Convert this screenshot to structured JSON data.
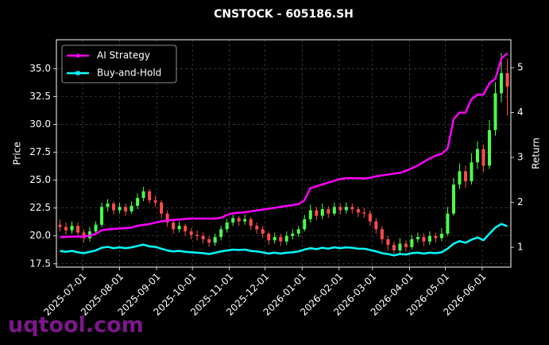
{
  "chart_data": {
    "type": "candlestick",
    "title": "CNSTOCK - 605186.SH",
    "ylabel": "Price",
    "y2label": "Return",
    "watermark": "uqtool.com",
    "x": [
      "2025-06-12",
      "2025-06-17",
      "2025-06-22",
      "2025-06-27",
      "2025-07-02",
      "2025-07-07",
      "2025-07-12",
      "2025-07-17",
      "2025-07-22",
      "2025-07-27",
      "2025-08-01",
      "2025-08-06",
      "2025-08-11",
      "2025-08-16",
      "2025-08-21",
      "2025-08-26",
      "2025-08-31",
      "2025-09-05",
      "2025-09-10",
      "2025-09-15",
      "2025-09-20",
      "2025-09-25",
      "2025-09-30",
      "2025-10-05",
      "2025-10-10",
      "2025-10-15",
      "2025-10-20",
      "2025-10-25",
      "2025-10-30",
      "2025-11-04",
      "2025-11-09",
      "2025-11-14",
      "2025-11-19",
      "2025-11-24",
      "2025-11-29",
      "2025-12-04",
      "2025-12-09",
      "2025-12-14",
      "2025-12-19",
      "2025-12-24",
      "2025-12-29",
      "2026-01-03",
      "2026-01-08",
      "2026-01-13",
      "2026-01-18",
      "2026-01-23",
      "2026-01-28",
      "2026-02-02",
      "2026-02-07",
      "2026-02-12",
      "2026-02-17",
      "2026-02-22",
      "2026-02-27",
      "2026-03-04",
      "2026-03-09",
      "2026-03-14",
      "2026-03-19",
      "2026-03-24",
      "2026-03-29",
      "2026-04-03",
      "2026-04-08",
      "2026-04-13",
      "2026-04-18",
      "2026-04-23",
      "2026-04-28",
      "2026-05-03",
      "2026-05-08",
      "2026-05-13",
      "2026-05-18",
      "2026-05-23",
      "2026-05-28",
      "2026-06-02",
      "2026-06-07",
      "2026-06-12",
      "2026-06-17",
      "2026-06-22"
    ],
    "ohlc": [
      [
        21.0,
        21.5,
        20.4,
        20.8
      ],
      [
        20.8,
        21.2,
        20.1,
        20.5
      ],
      [
        20.5,
        21.3,
        20.2,
        20.9
      ],
      [
        20.9,
        21.2,
        20.0,
        20.3
      ],
      [
        20.3,
        20.6,
        19.4,
        19.8
      ],
      [
        19.8,
        20.8,
        19.5,
        20.4
      ],
      [
        20.4,
        21.3,
        20.1,
        21.0
      ],
      [
        21.0,
        23.0,
        20.8,
        22.6
      ],
      [
        22.6,
        23.3,
        22.2,
        22.9
      ],
      [
        22.9,
        23.1,
        21.9,
        22.3
      ],
      [
        22.3,
        23.0,
        22.0,
        22.6
      ],
      [
        22.6,
        22.9,
        21.8,
        22.2
      ],
      [
        22.2,
        23.1,
        22.0,
        22.7
      ],
      [
        22.7,
        23.8,
        22.4,
        23.4
      ],
      [
        23.4,
        24.4,
        23.1,
        24.0
      ],
      [
        24.0,
        24.2,
        22.9,
        23.2
      ],
      [
        23.2,
        23.6,
        22.6,
        23.0
      ],
      [
        23.0,
        23.2,
        21.6,
        22.0
      ],
      [
        22.0,
        22.3,
        20.8,
        21.2
      ],
      [
        21.2,
        21.5,
        20.2,
        20.6
      ],
      [
        20.6,
        21.3,
        20.3,
        20.9
      ],
      [
        20.9,
        21.1,
        20.0,
        20.4
      ],
      [
        20.4,
        20.7,
        19.7,
        20.1
      ],
      [
        20.1,
        20.5,
        19.6,
        20.0
      ],
      [
        20.0,
        20.3,
        19.3,
        19.7
      ],
      [
        19.7,
        20.0,
        19.0,
        19.4
      ],
      [
        19.4,
        20.2,
        19.1,
        19.9
      ],
      [
        19.9,
        20.9,
        19.6,
        20.6
      ],
      [
        20.6,
        21.5,
        20.3,
        21.2
      ],
      [
        21.2,
        21.9,
        20.9,
        21.6
      ],
      [
        21.6,
        21.8,
        20.9,
        21.3
      ],
      [
        21.3,
        21.9,
        21.0,
        21.5
      ],
      [
        21.5,
        21.7,
        20.5,
        20.9
      ],
      [
        20.9,
        21.2,
        20.2,
        20.6
      ],
      [
        20.6,
        20.9,
        19.8,
        20.2
      ],
      [
        20.2,
        20.4,
        19.2,
        19.6
      ],
      [
        19.6,
        20.3,
        19.3,
        19.9
      ],
      [
        19.9,
        20.2,
        19.1,
        19.5
      ],
      [
        19.5,
        20.4,
        19.2,
        20.0
      ],
      [
        20.0,
        20.6,
        19.7,
        20.2
      ],
      [
        20.2,
        20.9,
        19.9,
        20.6
      ],
      [
        20.6,
        21.9,
        20.4,
        21.5
      ],
      [
        21.5,
        22.8,
        21.2,
        22.3
      ],
      [
        22.3,
        22.6,
        21.4,
        21.8
      ],
      [
        21.8,
        22.9,
        21.5,
        22.4
      ],
      [
        22.4,
        22.7,
        21.6,
        22.0
      ],
      [
        22.0,
        23.0,
        21.8,
        22.6
      ],
      [
        22.6,
        22.9,
        21.9,
        22.3
      ],
      [
        22.3,
        23.0,
        22.0,
        22.6
      ],
      [
        22.6,
        22.9,
        22.0,
        22.4
      ],
      [
        22.4,
        22.6,
        21.7,
        22.1
      ],
      [
        22.1,
        22.5,
        21.6,
        22.0
      ],
      [
        22.0,
        22.3,
        20.9,
        21.3
      ],
      [
        21.3,
        21.6,
        20.2,
        20.6
      ],
      [
        20.6,
        20.9,
        19.3,
        19.7
      ],
      [
        19.7,
        20.0,
        18.7,
        19.2
      ],
      [
        19.2,
        19.5,
        18.2,
        18.7
      ],
      [
        18.7,
        19.8,
        18.4,
        19.3
      ],
      [
        19.3,
        19.6,
        18.6,
        19.0
      ],
      [
        19.0,
        20.1,
        18.8,
        19.7
      ],
      [
        19.7,
        20.3,
        19.4,
        19.9
      ],
      [
        19.9,
        20.2,
        19.1,
        19.5
      ],
      [
        19.5,
        20.4,
        19.2,
        20.0
      ],
      [
        20.0,
        20.3,
        19.4,
        19.8
      ],
      [
        19.8,
        20.7,
        19.5,
        20.2
      ],
      [
        20.2,
        22.6,
        20.0,
        22.0
      ],
      [
        22.0,
        25.2,
        21.8,
        24.6
      ],
      [
        24.6,
        26.5,
        24.2,
        25.8
      ],
      [
        25.8,
        26.3,
        24.3,
        24.9
      ],
      [
        24.9,
        27.4,
        24.6,
        26.6
      ],
      [
        26.6,
        28.5,
        26.0,
        27.8
      ],
      [
        27.8,
        28.2,
        25.7,
        26.3
      ],
      [
        26.3,
        30.4,
        26.0,
        29.5
      ],
      [
        29.5,
        33.8,
        29.0,
        32.8
      ],
      [
        32.8,
        36.4,
        32.0,
        34.6
      ],
      [
        34.6,
        35.9,
        30.8,
        33.4
      ]
    ],
    "up_color": "#4cff4c",
    "down_color": "#ff4c4c",
    "series": [
      {
        "name": "AI Strategy",
        "color": "#ff00ff",
        "axis": "y2",
        "marker": "circle",
        "values": [
          1.23,
          1.23,
          1.24,
          1.24,
          1.24,
          1.26,
          1.3,
          1.38,
          1.4,
          1.41,
          1.42,
          1.43,
          1.44,
          1.48,
          1.5,
          1.52,
          1.55,
          1.58,
          1.6,
          1.61,
          1.62,
          1.63,
          1.64,
          1.64,
          1.64,
          1.64,
          1.64,
          1.66,
          1.72,
          1.76,
          1.77,
          1.78,
          1.8,
          1.82,
          1.84,
          1.86,
          1.88,
          1.9,
          1.92,
          1.94,
          1.96,
          2.05,
          2.32,
          2.36,
          2.4,
          2.44,
          2.48,
          2.52,
          2.54,
          2.54,
          2.54,
          2.53,
          2.55,
          2.58,
          2.6,
          2.62,
          2.64,
          2.66,
          2.7,
          2.76,
          2.82,
          2.9,
          2.98,
          3.04,
          3.08,
          3.2,
          3.85,
          4.0,
          4.0,
          4.3,
          4.4,
          4.4,
          4.65,
          4.75,
          5.2,
          5.32
        ]
      },
      {
        "name": "Buy-and-Hold",
        "color": "#00ffff",
        "axis": "y2",
        "marker": "square",
        "values": [
          0.92,
          0.9,
          0.92,
          0.89,
          0.87,
          0.9,
          0.93,
          0.99,
          1.01,
          0.98,
          1.0,
          0.98,
          1.0,
          1.03,
          1.06,
          1.02,
          1.01,
          0.97,
          0.93,
          0.91,
          0.92,
          0.9,
          0.89,
          0.88,
          0.87,
          0.85,
          0.88,
          0.91,
          0.93,
          0.95,
          0.94,
          0.95,
          0.92,
          0.91,
          0.89,
          0.86,
          0.88,
          0.86,
          0.88,
          0.89,
          0.91,
          0.95,
          0.98,
          0.96,
          0.99,
          0.97,
          1.0,
          0.98,
          1.0,
          0.99,
          0.97,
          0.97,
          0.94,
          0.91,
          0.87,
          0.85,
          0.82,
          0.85,
          0.84,
          0.87,
          0.88,
          0.86,
          0.88,
          0.87,
          0.89,
          0.97,
          1.08,
          1.14,
          1.1,
          1.17,
          1.22,
          1.16,
          1.3,
          1.44,
          1.52,
          1.47
        ]
      }
    ],
    "xlim": [
      "2025-06-09",
      "2026-06-25"
    ],
    "xticks": [
      "2025-07-01",
      "2025-08-01",
      "2025-09-01",
      "2025-10-01",
      "2025-11-01",
      "2025-12-01",
      "2026-01-01",
      "2026-02-01",
      "2026-03-01",
      "2026-04-01",
      "2026-05-01",
      "2026-06-01"
    ],
    "ylim": [
      17.2,
      37.6
    ],
    "yticks": [
      17.5,
      {
        "value": 20,
        "label": "20.0"
      },
      22.5,
      {
        "value": 25,
        "label": "25.0"
      },
      27.5,
      {
        "value": 30,
        "label": "30.0"
      },
      32.5,
      {
        "value": 35,
        "label": "35.0"
      }
    ],
    "y2lim": [
      0.56,
      5.62
    ],
    "y2ticks": [
      1,
      2,
      3,
      4,
      5
    ],
    "grid": true,
    "legend": "upper left"
  }
}
